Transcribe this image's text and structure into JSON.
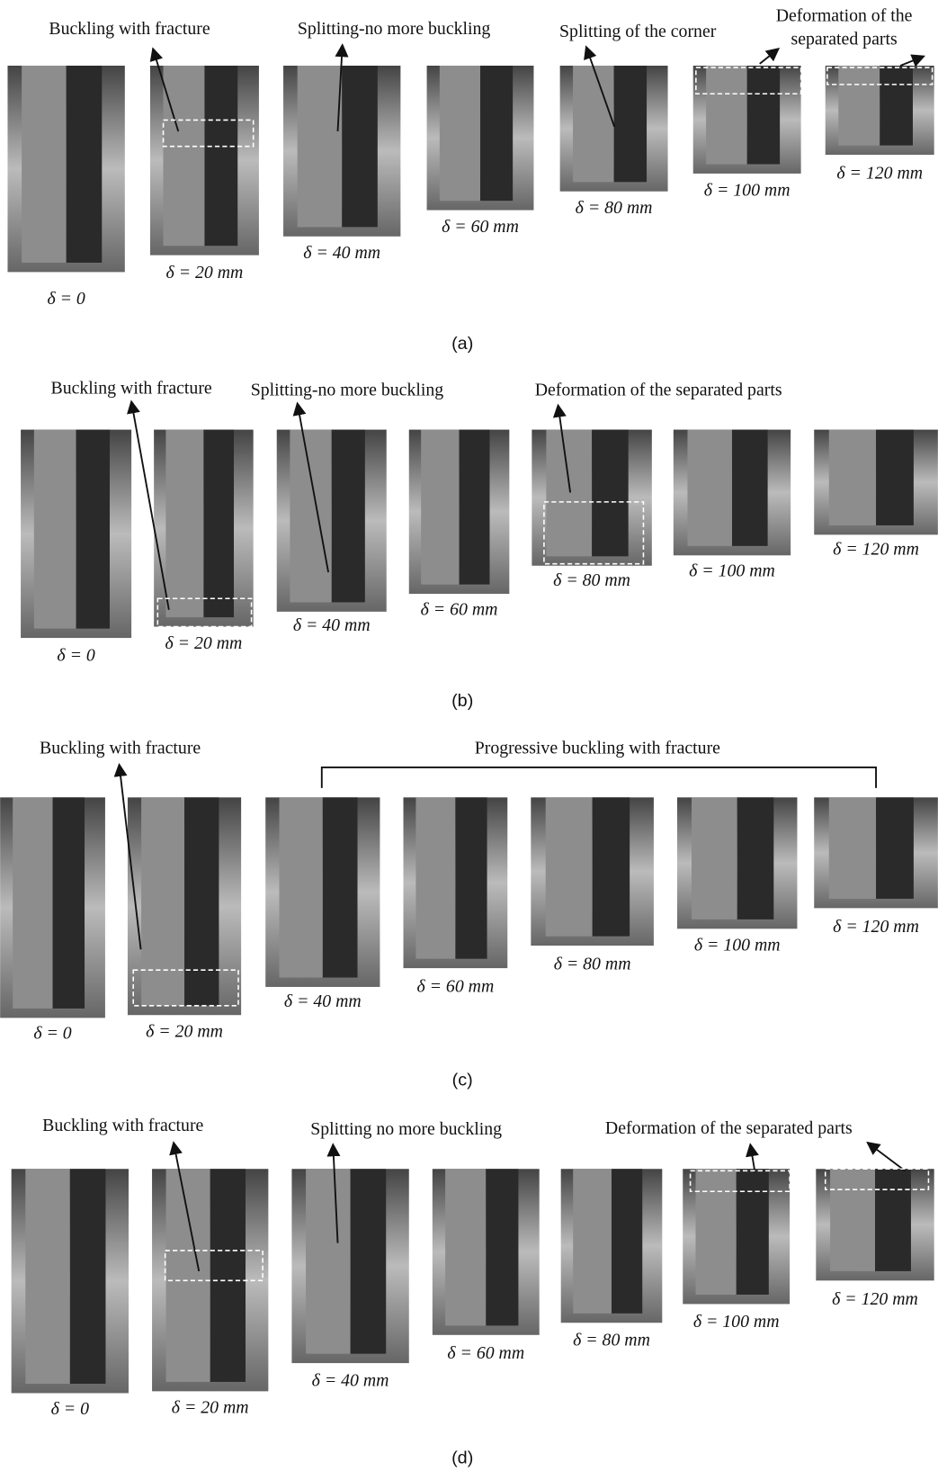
{
  "panels": [
    {
      "label": "(a)",
      "annotations": [
        [
          "Buckling with fracture"
        ],
        [
          "Splitting-no more buckling"
        ],
        [
          "Splitting of the corner"
        ],
        [
          "Deformation of the",
          "separated parts"
        ]
      ],
      "frames": [
        "δ = 0",
        "δ = 20 mm",
        "δ = 40 mm",
        "δ = 60 mm",
        "δ = 80 mm",
        "δ = 100 mm",
        "δ = 120 mm"
      ]
    },
    {
      "label": "(b)",
      "annotations": [
        [
          "Buckling with fracture"
        ],
        [
          "Splitting-no more buckling"
        ],
        [
          "Deformation of the separated parts"
        ]
      ],
      "frames": [
        "δ = 0",
        "δ = 20 mm",
        "δ = 40 mm",
        "δ = 60 mm",
        "δ = 80 mm",
        "δ = 100 mm",
        "δ = 120 mm"
      ]
    },
    {
      "label": "(c)",
      "annotations": [
        [
          "Buckling with fracture"
        ],
        [
          "Progressive buckling with fracture"
        ]
      ],
      "frames": [
        "δ = 0",
        "δ = 20 mm",
        "δ = 40 mm",
        "δ = 60 mm",
        "δ = 80 mm",
        "δ = 100 mm",
        "δ = 120 mm"
      ]
    },
    {
      "label": "(d)",
      "annotations": [
        [
          "Buckling with fracture"
        ],
        [
          "Splitting no more buckling"
        ],
        [
          "Deformation of the separated parts"
        ]
      ],
      "frames": [
        "δ = 0",
        "δ = 20 mm",
        "δ = 40 mm",
        "δ = 60 mm",
        "δ = 80 mm",
        "δ = 100 mm",
        "δ = 120 mm"
      ]
    }
  ]
}
